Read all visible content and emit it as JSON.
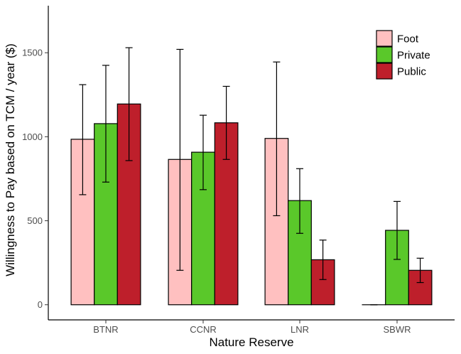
{
  "chart_data": {
    "type": "bar",
    "xlabel": "Nature Reserve",
    "ylabel": "Willingness to Pay based on TCM / year ($)",
    "categories": [
      "BTNR",
      "CCNR",
      "LNR",
      "SBWR"
    ],
    "yticks": [
      0,
      500,
      1000,
      1500
    ],
    "ylim": [
      -90,
      1780
    ],
    "grid": false,
    "legend_position": "top-right",
    "series": [
      {
        "name": "Foot",
        "color": "#FFC0C0",
        "values": [
          985,
          865,
          990,
          0
        ],
        "err_low": [
          655,
          205,
          530,
          0
        ],
        "err_high": [
          1310,
          1520,
          1445,
          0
        ]
      },
      {
        "name": "Private",
        "color": "#5AC82A",
        "values": [
          1078,
          908,
          620,
          443
        ],
        "err_low": [
          730,
          685,
          425,
          270
        ],
        "err_high": [
          1425,
          1128,
          810,
          615
        ]
      },
      {
        "name": "Public",
        "color": "#BE1F2B",
        "values": [
          1195,
          1083,
          268,
          205
        ],
        "err_low": [
          858,
          865,
          150,
          132
        ],
        "err_high": [
          1530,
          1300,
          385,
          277
        ]
      }
    ]
  }
}
